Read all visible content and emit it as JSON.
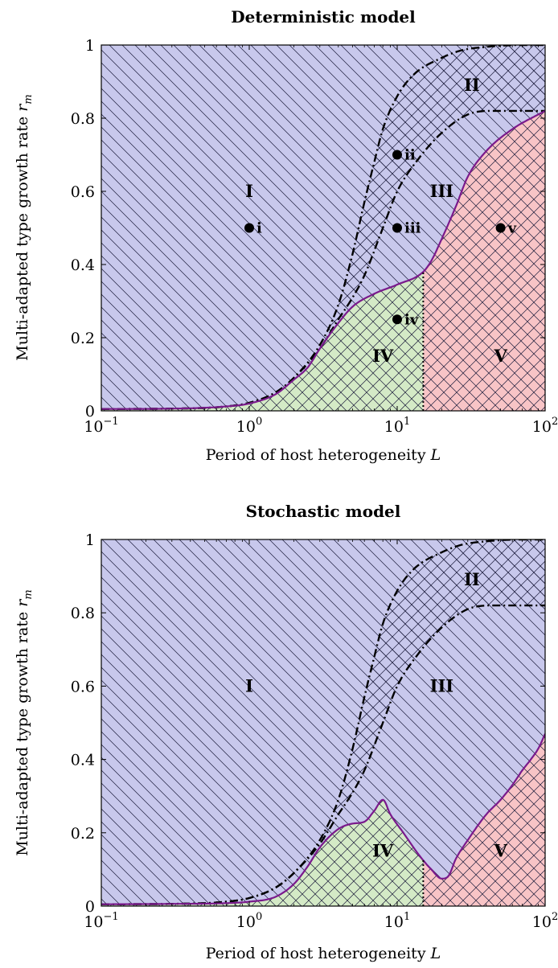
{
  "colors": {
    "region_I_III": "#c8c8ec",
    "region_IV": "#d4eac6",
    "region_V": "#f8c4c6",
    "boundary_purple": "#7a1a8c",
    "hatch": "#1a1a3a"
  },
  "chart_data": [
    {
      "type": "area",
      "title": "Deterministic model",
      "xlabel": "Period of host heterogeneity",
      "xlabel_var": "L",
      "ylabel": "Multi-adapted type growth rate",
      "ylabel_var": "r",
      "ylabel_sub": "m",
      "xscale": "log",
      "xlim": [
        0.1,
        100
      ],
      "ylim": [
        0,
        1
      ],
      "x_ticks": [
        {
          "base": "10",
          "exp": "−1"
        },
        {
          "base": "10",
          "exp": "0"
        },
        {
          "base": "10",
          "exp": "1"
        },
        {
          "base": "10",
          "exp": "2"
        }
      ],
      "y_ticks": [
        "0",
        "0.2",
        "0.4",
        "0.6",
        "0.8",
        "1"
      ],
      "region_labels": [
        {
          "text": "I",
          "x": 1,
          "y": 0.6
        },
        {
          "text": "II",
          "x": 32,
          "y": 0.89
        },
        {
          "text": "III",
          "x": 20,
          "y": 0.6
        },
        {
          "text": "IV",
          "x": 8,
          "y": 0.15
        },
        {
          "text": "V",
          "x": 50,
          "y": 0.15
        }
      ],
      "points": [
        {
          "label": "i",
          "x": 1,
          "y": 0.5
        },
        {
          "label": "ii",
          "x": 10,
          "y": 0.7
        },
        {
          "label": "iii",
          "x": 10,
          "y": 0.5
        },
        {
          "label": "iv",
          "x": 10,
          "y": 0.25
        },
        {
          "label": "v",
          "x": 50,
          "y": 0.5
        }
      ],
      "iv_v_boundary_L": 15,
      "curves": {
        "upper_dashdot": [
          [
            0.1,
            0.005
          ],
          [
            0.3,
            0.006
          ],
          [
            0.7,
            0.012
          ],
          [
            1,
            0.022
          ],
          [
            1.5,
            0.05
          ],
          [
            2,
            0.09
          ],
          [
            3,
            0.18
          ],
          [
            4,
            0.29
          ],
          [
            5,
            0.43
          ],
          [
            6,
            0.57
          ],
          [
            7,
            0.68
          ],
          [
            8,
            0.77
          ],
          [
            10,
            0.86
          ],
          [
            13,
            0.92
          ],
          [
            20,
            0.965
          ],
          [
            27,
            0.985
          ],
          [
            40,
            0.995
          ],
          [
            70,
            1.0
          ],
          [
            100,
            1.0
          ]
        ],
        "lower_dashdot": [
          [
            0.1,
            0.005
          ],
          [
            0.3,
            0.006
          ],
          [
            0.7,
            0.012
          ],
          [
            1,
            0.022
          ],
          [
            1.5,
            0.05
          ],
          [
            2,
            0.09
          ],
          [
            3,
            0.17
          ],
          [
            4,
            0.25
          ],
          [
            5,
            0.31
          ],
          [
            6,
            0.37
          ],
          [
            8,
            0.5
          ],
          [
            10,
            0.6
          ],
          [
            14,
            0.69
          ],
          [
            20,
            0.76
          ],
          [
            30,
            0.81
          ],
          [
            45,
            0.82
          ],
          [
            70,
            0.82
          ],
          [
            100,
            0.82
          ]
        ],
        "purple_boundary": [
          [
            0.1,
            0.005
          ],
          [
            0.3,
            0.006
          ],
          [
            0.7,
            0.012
          ],
          [
            1,
            0.02
          ],
          [
            1.5,
            0.045
          ],
          [
            2,
            0.085
          ],
          [
            2.5,
            0.12
          ],
          [
            3,
            0.17
          ],
          [
            4,
            0.24
          ],
          [
            5,
            0.285
          ],
          [
            7,
            0.32
          ],
          [
            10,
            0.345
          ],
          [
            15,
            0.38
          ],
          [
            17,
            0.41
          ],
          [
            20,
            0.47
          ],
          [
            25,
            0.56
          ],
          [
            30,
            0.64
          ],
          [
            40,
            0.71
          ],
          [
            60,
            0.77
          ],
          [
            100,
            0.82
          ]
        ]
      }
    },
    {
      "type": "area",
      "title": "Stochastic model",
      "xlabel": "Period of host heterogeneity",
      "xlabel_var": "L",
      "ylabel": "Multi-adapted type growth rate",
      "ylabel_var": "r",
      "ylabel_sub": "m",
      "xscale": "log",
      "xlim": [
        0.1,
        100
      ],
      "ylim": [
        0,
        1
      ],
      "x_ticks": [
        {
          "base": "10",
          "exp": "−1"
        },
        {
          "base": "10",
          "exp": "0"
        },
        {
          "base": "10",
          "exp": "1"
        },
        {
          "base": "10",
          "exp": "2"
        }
      ],
      "y_ticks": [
        "0",
        "0.2",
        "0.4",
        "0.6",
        "0.8",
        "1"
      ],
      "region_labels": [
        {
          "text": "I",
          "x": 1,
          "y": 0.6
        },
        {
          "text": "II",
          "x": 32,
          "y": 0.89
        },
        {
          "text": "III",
          "x": 20,
          "y": 0.6
        },
        {
          "text": "IV",
          "x": 8,
          "y": 0.15
        },
        {
          "text": "V",
          "x": 50,
          "y": 0.15
        }
      ],
      "points": [],
      "iv_v_boundary_L": 15,
      "curves": {
        "upper_dashdot": [
          [
            0.1,
            0.005
          ],
          [
            0.3,
            0.006
          ],
          [
            0.7,
            0.012
          ],
          [
            1,
            0.022
          ],
          [
            1.5,
            0.05
          ],
          [
            2,
            0.09
          ],
          [
            3,
            0.18
          ],
          [
            4,
            0.29
          ],
          [
            5,
            0.43
          ],
          [
            6,
            0.57
          ],
          [
            7,
            0.68
          ],
          [
            8,
            0.77
          ],
          [
            10,
            0.86
          ],
          [
            13,
            0.92
          ],
          [
            20,
            0.965
          ],
          [
            27,
            0.985
          ],
          [
            40,
            0.995
          ],
          [
            70,
            1.0
          ],
          [
            100,
            1.0
          ]
        ],
        "lower_dashdot": [
          [
            0.1,
            0.005
          ],
          [
            0.3,
            0.006
          ],
          [
            0.7,
            0.012
          ],
          [
            1,
            0.022
          ],
          [
            1.5,
            0.05
          ],
          [
            2,
            0.09
          ],
          [
            3,
            0.17
          ],
          [
            4,
            0.25
          ],
          [
            5,
            0.31
          ],
          [
            6,
            0.37
          ],
          [
            8,
            0.5
          ],
          [
            10,
            0.6
          ],
          [
            14,
            0.69
          ],
          [
            20,
            0.76
          ],
          [
            30,
            0.81
          ],
          [
            45,
            0.82
          ],
          [
            70,
            0.82
          ],
          [
            100,
            0.82
          ]
        ],
        "purple_boundary": [
          [
            0.1,
            0.005
          ],
          [
            0.3,
            0.006
          ],
          [
            0.7,
            0.008
          ],
          [
            1,
            0.012
          ],
          [
            1.5,
            0.025
          ],
          [
            2,
            0.06
          ],
          [
            2.5,
            0.11
          ],
          [
            3,
            0.16
          ],
          [
            4,
            0.21
          ],
          [
            5,
            0.225
          ],
          [
            6,
            0.23
          ],
          [
            7,
            0.26
          ],
          [
            8,
            0.29
          ],
          [
            9,
            0.25
          ],
          [
            11,
            0.2
          ],
          [
            14,
            0.14
          ],
          [
            17,
            0.1
          ],
          [
            20,
            0.075
          ],
          [
            22,
            0.08
          ],
          [
            25,
            0.13
          ],
          [
            30,
            0.18
          ],
          [
            40,
            0.25
          ],
          [
            50,
            0.29
          ],
          [
            60,
            0.33
          ],
          [
            70,
            0.37
          ],
          [
            80,
            0.4
          ],
          [
            90,
            0.43
          ],
          [
            100,
            0.47
          ]
        ]
      }
    }
  ]
}
